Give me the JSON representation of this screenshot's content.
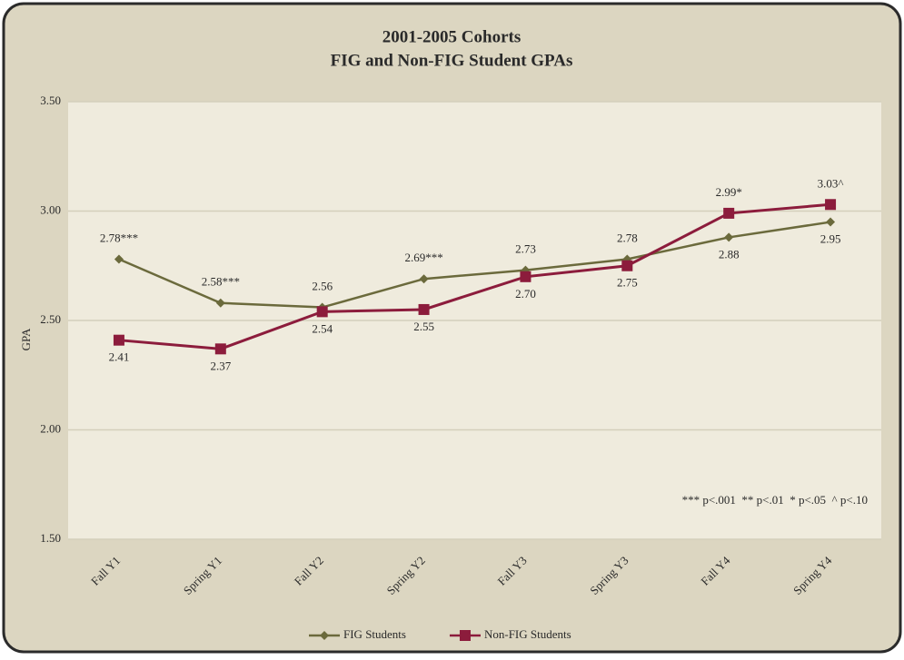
{
  "chart_data": {
    "type": "line",
    "title": "2001-2005 Cohorts",
    "subtitle": "FIG and Non-FIG Student GPAs",
    "ylabel": "GPA",
    "annotation": "*** p<.001  ** p<.01  * p<.05  ^ p<.10",
    "categories": [
      "Fall Y1",
      "Spring Y1",
      "Fall Y2",
      "Spring Y2",
      "Fall Y3",
      "Spring Y3",
      "Fall Y4",
      "Spring Y4"
    ],
    "series": [
      {
        "name": "FIG Students",
        "color": "#6b6a3c",
        "marker": "diamond",
        "values": [
          2.78,
          2.58,
          2.56,
          2.69,
          2.73,
          2.78,
          2.88,
          2.95
        ],
        "value_labels": [
          "2.78***",
          "2.58***",
          "2.56",
          "2.69***",
          "2.73",
          "2.78",
          "2.88",
          "2.95"
        ]
      },
      {
        "name": "Non-FIG Students",
        "color": "#8c1c3c",
        "marker": "square",
        "values": [
          2.41,
          2.37,
          2.54,
          2.55,
          2.7,
          2.75,
          2.99,
          3.03
        ],
        "value_labels": [
          "2.41",
          "2.37",
          "2.54",
          "2.55",
          "2.70",
          "2.75",
          "2.99*",
          "3.03^"
        ]
      }
    ],
    "ylim": [
      1.5,
      3.5
    ],
    "yticks": [
      {
        "value": 1.5,
        "label": "1.50"
      },
      {
        "value": 2,
        "label": "2.00"
      },
      {
        "value": 2.5,
        "label": "2.50"
      },
      {
        "value": 3,
        "label": "3.00"
      },
      {
        "value": 3.5,
        "label": "3.50"
      }
    ],
    "grid": true,
    "legend": "bottom"
  }
}
